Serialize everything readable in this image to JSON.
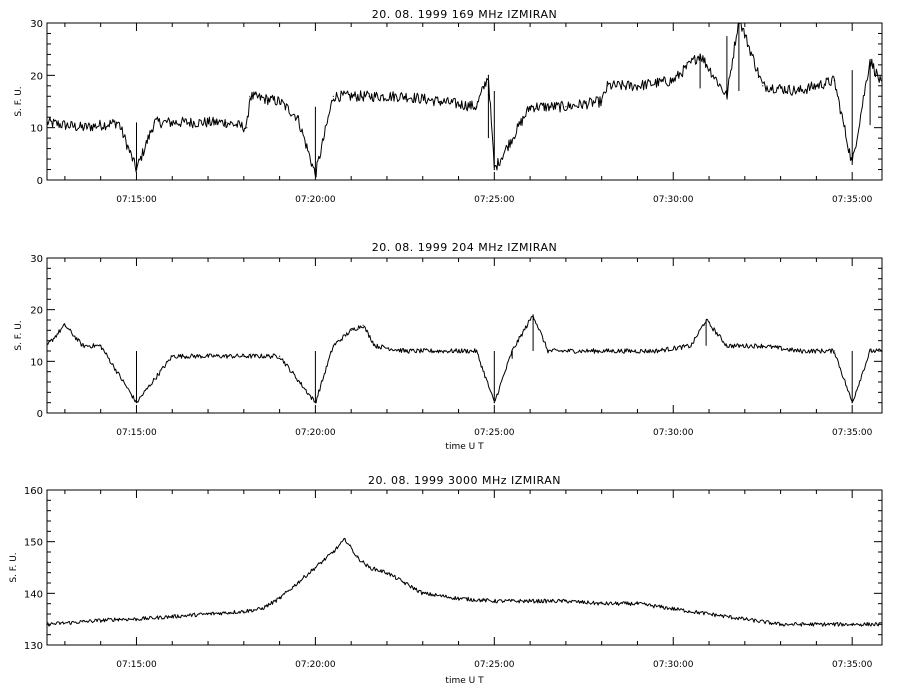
{
  "chart_data": [
    {
      "type": "line",
      "title": "20. 08. 1999    169 MHz    IZMIRAN",
      "ylabel": "S. F. U.",
      "xlabel": "",
      "ylim": [
        0,
        30
      ],
      "yticks": [
        0,
        10,
        20,
        30
      ],
      "xlim": [
        "07:12:30",
        "07:35:50"
      ],
      "xticks": [
        "07:15:00",
        "07:20:00",
        "07:25:00",
        "07:30:00",
        "07:35:00"
      ],
      "series": [
        {
          "x": [
            "07:12:30",
            "07:13:30",
            "07:14:30",
            "07:15:00",
            "07:15:30",
            "07:16:30",
            "07:17:30",
            "07:18:05",
            "07:18:10",
            "07:19:00",
            "07:19:30",
            "07:20:00",
            "07:20:30",
            "07:21:30",
            "07:22:30",
            "07:23:30",
            "07:24:30",
            "07:24:50",
            "07:25:00",
            "07:26:00",
            "07:27:00",
            "07:28:00",
            "07:28:10",
            "07:29:00",
            "07:30:00",
            "07:30:45",
            "07:31:30",
            "07:31:50",
            "07:32:30",
            "07:33:30",
            "07:34:30",
            "07:35:00",
            "07:35:30",
            "07:35:50"
          ],
          "values": [
            11,
            10,
            11,
            2,
            11,
            11,
            11,
            10,
            16,
            15,
            12,
            1,
            16,
            16,
            16,
            15,
            14,
            20,
            2,
            14,
            14,
            15,
            18,
            18,
            19,
            24,
            16,
            31,
            18,
            17,
            19,
            3,
            23,
            18
          ]
        }
      ]
    },
    {
      "type": "line",
      "title": "20. 08. 1999    204 MHz    IZMIRAN",
      "ylabel": "S. F. U.",
      "xlabel": "time   U T",
      "ylim": [
        0,
        30
      ],
      "yticks": [
        0,
        10,
        20,
        30
      ],
      "xlim": [
        "07:12:30",
        "07:35:50"
      ],
      "xticks": [
        "07:15:00",
        "07:20:00",
        "07:25:00",
        "07:30:00",
        "07:35:00"
      ],
      "series": [
        {
          "x": [
            "07:12:30",
            "07:13:00",
            "07:13:30",
            "07:14:00",
            "07:15:00",
            "07:16:00",
            "07:17:00",
            "07:18:00",
            "07:19:00",
            "07:20:00",
            "07:20:30",
            "07:21:00",
            "07:21:20",
            "07:21:40",
            "07:22:30",
            "07:23:30",
            "07:24:30",
            "07:25:00",
            "07:25:30",
            "07:26:05",
            "07:26:30",
            "07:27:30",
            "07:28:30",
            "07:29:30",
            "07:30:30",
            "07:30:55",
            "07:31:30",
            "07:32:30",
            "07:33:30",
            "07:34:30",
            "07:35:00",
            "07:35:30",
            "07:35:50"
          ],
          "values": [
            13,
            17,
            13,
            13,
            2,
            11,
            11,
            11,
            11,
            2,
            13,
            16,
            17,
            13,
            12,
            12,
            12,
            2,
            12,
            19,
            12,
            12,
            12,
            12,
            13,
            18,
            13,
            13,
            12,
            12,
            2,
            12,
            12
          ]
        }
      ]
    },
    {
      "type": "line",
      "title": "20. 08. 1999    3000 MHz    IZMIRAN",
      "ylabel": "S. F. U.",
      "xlabel": "time   U T",
      "ylim": [
        130,
        160
      ],
      "yticks": [
        130,
        140,
        150,
        160
      ],
      "xlim": [
        "07:12:30",
        "07:35:50"
      ],
      "xticks": [
        "07:15:00",
        "07:20:00",
        "07:25:00",
        "07:30:00",
        "07:35:00"
      ],
      "series": [
        {
          "x": [
            "07:12:30",
            "07:13:30",
            "07:14:30",
            "07:15:00",
            "07:16:00",
            "07:17:00",
            "07:18:00",
            "07:18:30",
            "07:19:00",
            "07:19:30",
            "07:20:00",
            "07:20:30",
            "07:20:50",
            "07:21:10",
            "07:21:30",
            "07:22:00",
            "07:22:30",
            "07:23:00",
            "07:24:00",
            "07:25:00",
            "07:26:00",
            "07:27:00",
            "07:28:00",
            "07:29:00",
            "07:30:00",
            "07:31:00",
            "07:32:00",
            "07:33:00",
            "07:34:00",
            "07:35:00",
            "07:35:50"
          ],
          "values": [
            134,
            134.5,
            135,
            135,
            135.5,
            136,
            136.5,
            137,
            139,
            142,
            145,
            148,
            150.5,
            147,
            145,
            144,
            142,
            140,
            139,
            138.5,
            138.5,
            138.5,
            138,
            138,
            137,
            136,
            135,
            134,
            134,
            134,
            134
          ]
        }
      ]
    }
  ]
}
